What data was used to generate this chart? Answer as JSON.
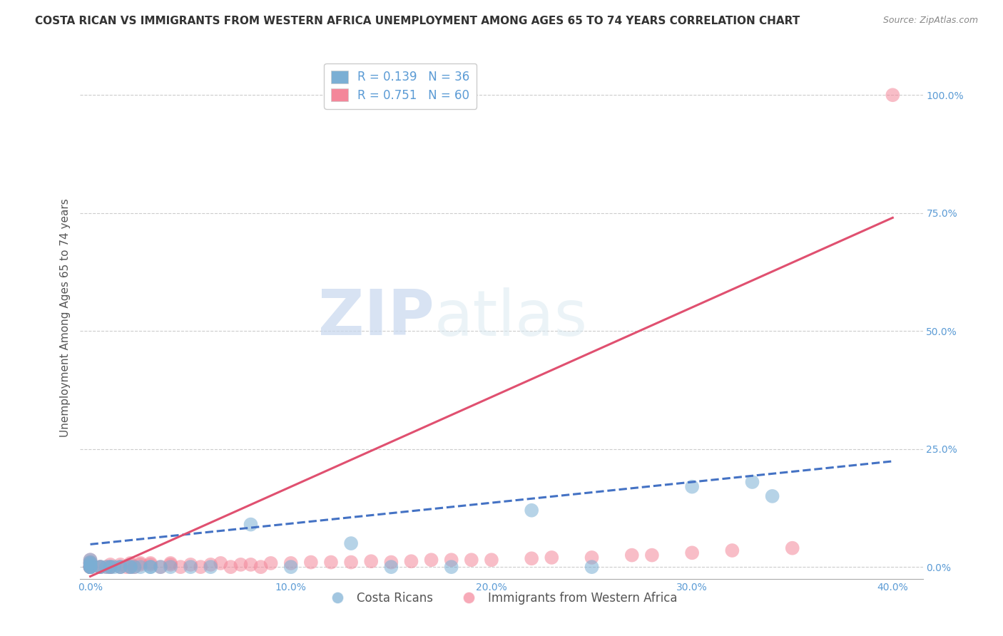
{
  "title": "COSTA RICAN VS IMMIGRANTS FROM WESTERN AFRICA UNEMPLOYMENT AMONG AGES 65 TO 74 YEARS CORRELATION CHART",
  "source": "Source: ZipAtlas.com",
  "ylabel": "Unemployment Among Ages 65 to 74 years",
  "xlabel_ticks": [
    "0.0%",
    "10.0%",
    "20.0%",
    "30.0%",
    "40.0%"
  ],
  "xlabel_values": [
    0.0,
    0.1,
    0.2,
    0.3,
    0.4
  ],
  "ylabel_ticks": [
    "0.0%",
    "25.0%",
    "50.0%",
    "75.0%",
    "100.0%"
  ],
  "ylabel_values": [
    0.0,
    0.25,
    0.5,
    0.75,
    1.0
  ],
  "xlim": [
    -0.005,
    0.415
  ],
  "ylim": [
    -0.025,
    1.08
  ],
  "legend_entries": [
    {
      "label": "R = 0.139   N = 36",
      "color": "#aac4e2"
    },
    {
      "label": "R = 0.751   N = 60",
      "color": "#f5b8c8"
    }
  ],
  "costa_rican_x": [
    0.0,
    0.0,
    0.0,
    0.0,
    0.0,
    0.0,
    0.0,
    0.0,
    0.005,
    0.005,
    0.008,
    0.01,
    0.01,
    0.012,
    0.015,
    0.015,
    0.02,
    0.02,
    0.022,
    0.025,
    0.03,
    0.03,
    0.035,
    0.04,
    0.05,
    0.06,
    0.08,
    0.1,
    0.13,
    0.15,
    0.18,
    0.22,
    0.25,
    0.3,
    0.33,
    0.34
  ],
  "costa_rican_y": [
    0.0,
    0.0,
    0.0,
    0.0,
    0.005,
    0.008,
    0.01,
    0.015,
    0.0,
    0.0,
    0.0,
    0.0,
    0.0,
    0.0,
    0.0,
    0.0,
    0.0,
    0.0,
    0.0,
    0.0,
    0.0,
    0.0,
    0.0,
    0.0,
    0.0,
    0.0,
    0.09,
    0.0,
    0.05,
    0.0,
    0.0,
    0.12,
    0.0,
    0.17,
    0.18,
    0.15
  ],
  "western_africa_x": [
    0.0,
    0.0,
    0.0,
    0.0,
    0.0,
    0.0,
    0.0,
    0.0,
    0.0,
    0.0,
    0.005,
    0.005,
    0.008,
    0.01,
    0.01,
    0.01,
    0.015,
    0.015,
    0.018,
    0.02,
    0.02,
    0.02,
    0.022,
    0.025,
    0.025,
    0.03,
    0.03,
    0.035,
    0.04,
    0.04,
    0.045,
    0.05,
    0.055,
    0.06,
    0.065,
    0.07,
    0.075,
    0.08,
    0.085,
    0.09,
    0.1,
    0.11,
    0.12,
    0.13,
    0.14,
    0.15,
    0.16,
    0.17,
    0.18,
    0.19,
    0.2,
    0.22,
    0.23,
    0.25,
    0.27,
    0.28,
    0.3,
    0.32,
    0.35,
    0.4
  ],
  "western_africa_y": [
    0.0,
    0.0,
    0.0,
    0.0,
    0.0,
    0.0,
    0.005,
    0.008,
    0.01,
    0.015,
    0.0,
    0.0,
    0.0,
    0.0,
    0.0,
    0.005,
    0.0,
    0.005,
    0.0,
    0.0,
    0.005,
    0.008,
    0.0,
    0.005,
    0.008,
    0.005,
    0.008,
    0.0,
    0.005,
    0.008,
    0.0,
    0.005,
    0.0,
    0.005,
    0.008,
    0.0,
    0.005,
    0.005,
    0.0,
    0.008,
    0.008,
    0.01,
    0.01,
    0.01,
    0.012,
    0.01,
    0.012,
    0.015,
    0.015,
    0.015,
    0.015,
    0.018,
    0.02,
    0.02,
    0.025,
    0.025,
    0.03,
    0.035,
    0.04,
    1.0
  ],
  "costa_rican_color": "#7bafd4",
  "western_africa_color": "#f4879a",
  "costa_rican_line_color": "#4472c4",
  "western_africa_line_color": "#e05070",
  "background_color": "#ffffff",
  "watermark_zip": "ZIP",
  "watermark_atlas": "atlas",
  "grid_color": "#cccccc",
  "title_fontsize": 11,
  "axis_label_fontsize": 11,
  "tick_fontsize": 10,
  "legend_fontsize": 12,
  "cr_line_intercept": 0.048,
  "cr_line_slope": 0.44,
  "wa_line_intercept": -0.02,
  "wa_line_slope": 1.9
}
